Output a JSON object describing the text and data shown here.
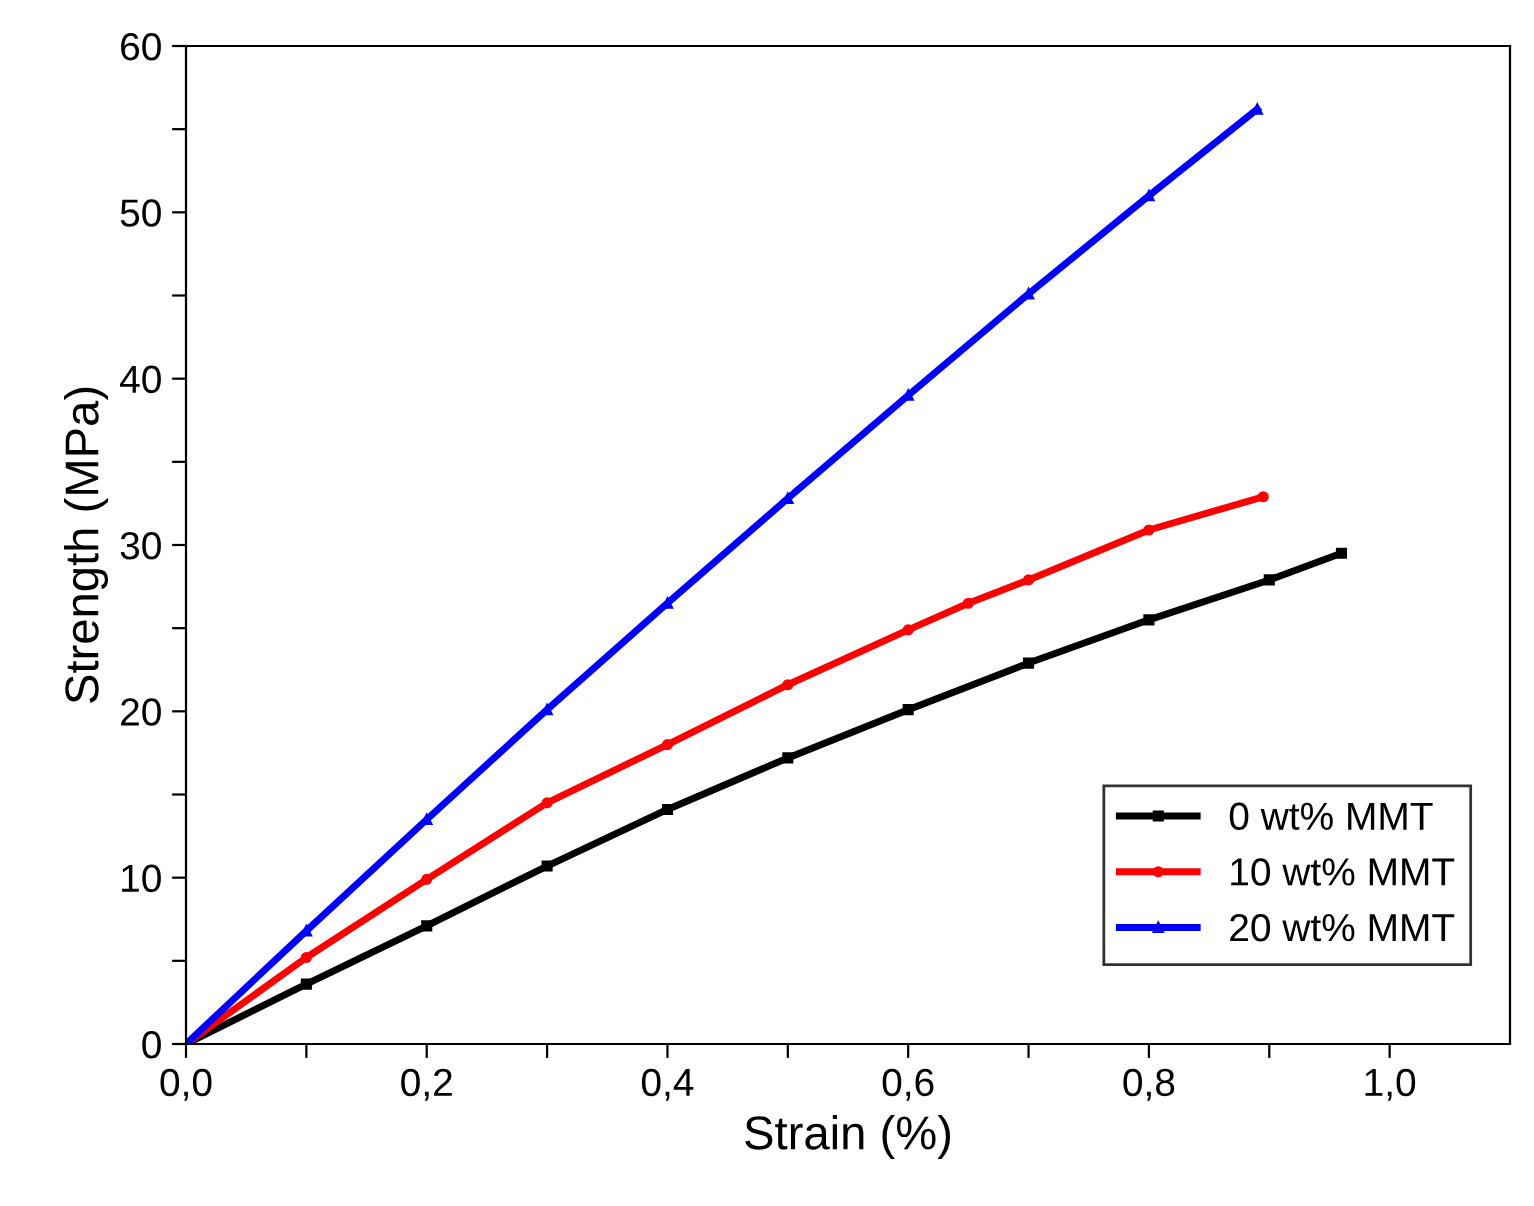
{
  "chart_data": {
    "type": "line",
    "xlabel": "Strain (%)",
    "ylabel": "Strength (MPa)",
    "xlim": [
      0,
      1.1
    ],
    "xticks": [
      {
        "value": 0,
        "label": "0,0"
      },
      {
        "value": 0.1,
        "label": null
      },
      {
        "value": 0.2,
        "label": "0,2"
      },
      {
        "value": 0.3,
        "label": null
      },
      {
        "value": 0.4,
        "label": "0,4"
      },
      {
        "value": 0.5,
        "label": null
      },
      {
        "value": 0.6,
        "label": "0,6"
      },
      {
        "value": 0.7,
        "label": null
      },
      {
        "value": 0.8,
        "label": "0,8"
      },
      {
        "value": 0.9,
        "label": null
      },
      {
        "value": 1.0,
        "label": "1,0"
      }
    ],
    "ylim": [
      0,
      60
    ],
    "yticks": [
      0,
      {
        "value": 5,
        "label": null
      },
      10,
      {
        "value": 15,
        "label": null
      },
      20,
      {
        "value": 25,
        "label": null
      },
      30,
      {
        "value": 35,
        "label": null
      },
      40,
      {
        "value": 45,
        "label": null
      },
      50,
      {
        "value": 55,
        "label": null
      },
      60
    ],
    "grid": false,
    "legend": "bottom right",
    "series": [
      {
        "name": "0 wt% MMT",
        "color": "#000000",
        "marker": "square",
        "x": [
          0,
          0.1,
          0.2,
          0.3,
          0.4,
          0.5,
          0.6,
          0.7,
          0.8,
          0.9,
          0.96
        ],
        "values": [
          0,
          3.6,
          7.1,
          10.7,
          14.1,
          17.2,
          20.1,
          22.9,
          25.5,
          27.9,
          29.5
        ]
      },
      {
        "name": "10 wt% MMT",
        "color": "#ff0000",
        "marker": "circle",
        "x": [
          0,
          0.1,
          0.2,
          0.3,
          0.4,
          0.5,
          0.6,
          0.65,
          0.7,
          0.8,
          0.895
        ],
        "values": [
          0,
          5.2,
          9.9,
          14.5,
          18.0,
          21.6,
          24.9,
          26.5,
          27.9,
          30.9,
          32.9
        ]
      },
      {
        "name": "20 wt% MMT",
        "color": "#0000ff",
        "marker": "triangle",
        "x": [
          0,
          0.1,
          0.2,
          0.3,
          0.4,
          0.5,
          0.6,
          0.7,
          0.8,
          0.89
        ],
        "values": [
          0,
          6.8,
          13.5,
          20.1,
          26.5,
          32.8,
          39.0,
          45.1,
          51.0,
          56.2
        ]
      }
    ]
  }
}
